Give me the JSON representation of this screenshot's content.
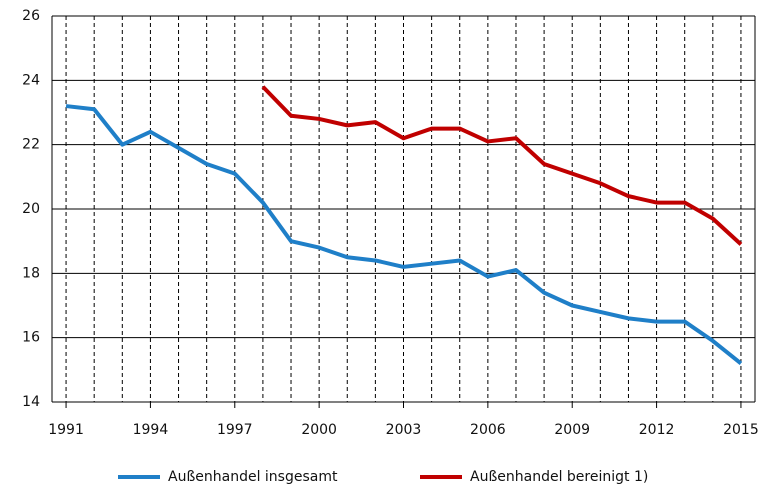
{
  "chart_data": {
    "type": "line",
    "x": [
      1991,
      1992,
      1993,
      1994,
      1995,
      1996,
      1997,
      1998,
      1999,
      2000,
      2001,
      2002,
      2003,
      2004,
      2005,
      2006,
      2007,
      2008,
      2009,
      2010,
      2011,
      2012,
      2013,
      2014,
      2015
    ],
    "series": [
      {
        "name": "Außenhandel insgesamt",
        "color": "#1f7fc8",
        "values": [
          23.2,
          23.1,
          22.0,
          22.4,
          21.9,
          21.4,
          21.1,
          20.2,
          19.0,
          18.8,
          18.5,
          18.4,
          18.2,
          18.3,
          18.4,
          17.9,
          18.1,
          17.4,
          17.0,
          16.8,
          16.6,
          16.5,
          16.5,
          15.9,
          15.2
        ]
      },
      {
        "name": "Außenhandel bereinigt 1)",
        "color": "#c00000",
        "values": [
          null,
          null,
          null,
          null,
          null,
          null,
          null,
          23.8,
          22.9,
          22.8,
          22.6,
          22.7,
          22.2,
          22.5,
          22.5,
          22.1,
          22.2,
          21.4,
          21.1,
          20.8,
          20.4,
          20.2,
          20.2,
          19.7,
          18.9
        ]
      }
    ],
    "xlim": [
      1990.5,
      2015.5
    ],
    "xticks": [
      1991,
      1994,
      1997,
      2000,
      2003,
      2006,
      2009,
      2012,
      2015
    ],
    "ylim": [
      14,
      26
    ],
    "yticks": [
      14,
      16,
      18,
      20,
      22,
      24,
      26
    ],
    "grid": true,
    "legend": "bottom"
  }
}
